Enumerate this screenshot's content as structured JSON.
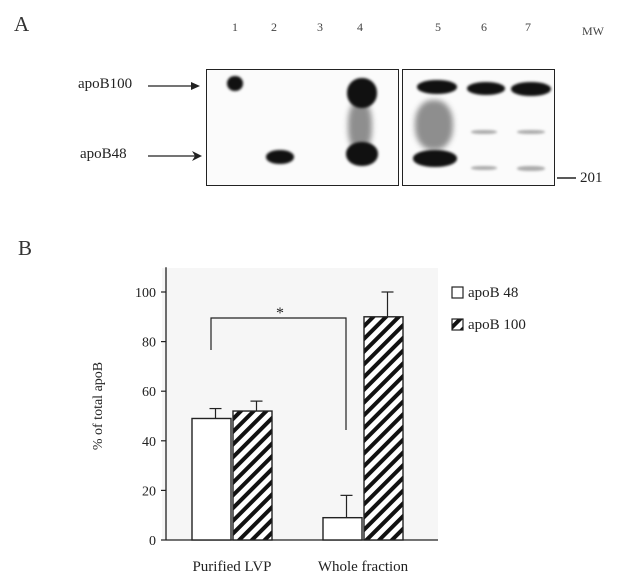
{
  "panel_a": {
    "letter": "A",
    "lanes": [
      "1",
      "2",
      "3",
      "4",
      "5",
      "6",
      "7"
    ],
    "mw_header": "MW",
    "labels": {
      "upper": "apoB100",
      "lower": "apoB48"
    },
    "mw_marker": "201"
  },
  "panel_b": {
    "letter": "B"
  },
  "chart_data": {
    "type": "bar",
    "categories": [
      "Purified LVP",
      "Whole fraction"
    ],
    "series": [
      {
        "name": "apoB 48",
        "values": [
          49,
          9
        ],
        "errors": [
          4,
          9
        ],
        "pattern": "open"
      },
      {
        "name": "apoB 100",
        "values": [
          52,
          90
        ],
        "errors": [
          4,
          10
        ],
        "pattern": "hatched"
      }
    ],
    "ylabel": "% of total apoB",
    "yticks": [
      0,
      20,
      40,
      60,
      80,
      100
    ],
    "ylim": [
      0,
      110
    ],
    "annotation": "*",
    "legend_position": "right"
  }
}
